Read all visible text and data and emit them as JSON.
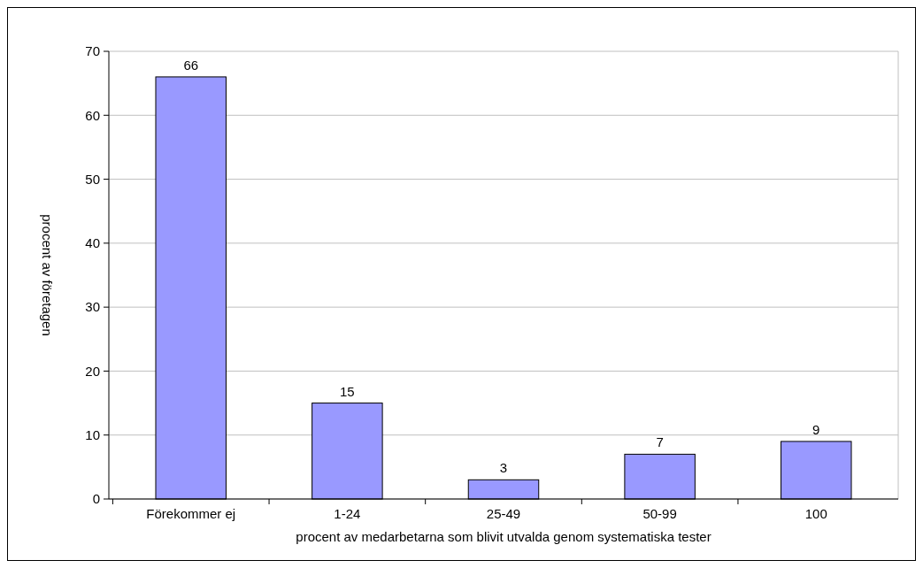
{
  "chart_data": {
    "type": "bar",
    "xlabel": "procent av medarbetarna som blivit utvalda genom systematiska tester",
    "ylabel": "procent av företagen",
    "categories": [
      "Förekommer ej",
      "1-24",
      "25-49",
      "50-99",
      "100"
    ],
    "values": [
      66,
      15,
      3,
      7,
      9
    ],
    "color": "#9999ff",
    "ylim": [
      0,
      70
    ],
    "yticks": [
      0,
      10,
      20,
      30,
      40,
      50,
      60,
      70
    ],
    "grid": "y",
    "data_labels": true
  }
}
